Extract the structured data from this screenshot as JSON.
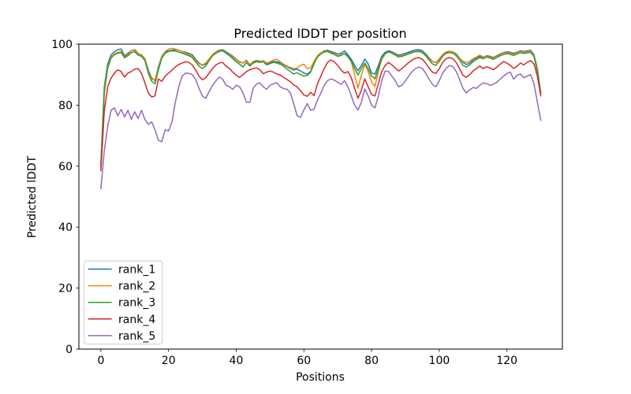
{
  "chart_data": {
    "type": "line",
    "title": "Predicted lDDT per position",
    "xlabel": "Positions",
    "ylabel": "Predicted lDDT",
    "xlim": [
      -6.7,
      136.7
    ],
    "ylim": [
      0,
      100
    ],
    "xticks": [
      0,
      20,
      40,
      60,
      80,
      100,
      120
    ],
    "yticks": [
      0,
      20,
      40,
      60,
      80,
      100
    ],
    "grid": false,
    "legend_position": "lower left",
    "x_start": 0,
    "x_step": 1,
    "n_points": 131,
    "series": [
      {
        "name": "rank_1",
        "color": "#1f77b4",
        "values": [
          61,
          86,
          93.5,
          96.5,
          97.5,
          98.2,
          98.4,
          96.2,
          97,
          97.9,
          98,
          96.8,
          96.5,
          95.2,
          91.5,
          88.9,
          88,
          92.5,
          96,
          97.5,
          97.8,
          98,
          98.2,
          98,
          97.6,
          97.3,
          97,
          96.5,
          95,
          93.8,
          93,
          93.5,
          95,
          96.5,
          97.5,
          98,
          98.2,
          97.5,
          96.8,
          96,
          95,
          94.2,
          93.8,
          94.7,
          93.2,
          94.3,
          94.6,
          94.4,
          94.5,
          93.6,
          94,
          94.3,
          94.2,
          93.9,
          93.2,
          92.6,
          92,
          91.5,
          91.8,
          91.2,
          90.5,
          90.2,
          91,
          94,
          96,
          97,
          97.8,
          98,
          97.6,
          97.2,
          96.8,
          97,
          97.8,
          96.5,
          95,
          93,
          91.3,
          93,
          95.1,
          93.5,
          90.5,
          90.2,
          93,
          96,
          97.3,
          97.8,
          97.5,
          96.9,
          96.4,
          96.6,
          97,
          97.4,
          97.8,
          98.1,
          98.2,
          97.8,
          96.8,
          95.5,
          94.3,
          93.9,
          95,
          96.5,
          97.4,
          97.6,
          97.5,
          96.8,
          95.5,
          94,
          93.3,
          93.8,
          94.8,
          95.5,
          96,
          95.6,
          96.2,
          96,
          95.6,
          96.2,
          96.8,
          97.2,
          97.5,
          97.3,
          97,
          97.4,
          97.8,
          97.6,
          97.8,
          98,
          96.5,
          92,
          84
        ]
      },
      {
        "name": "rank_2",
        "color": "#ff7f0e",
        "values": [
          60,
          85,
          92.5,
          95.8,
          96.8,
          97.3,
          97.6,
          95.8,
          96.5,
          97.8,
          98.3,
          97,
          96.3,
          95,
          91,
          88.5,
          88.3,
          92,
          95.8,
          97.6,
          98.4,
          98.6,
          98.4,
          98,
          97.5,
          97,
          96.6,
          96,
          94.6,
          93.5,
          93.2,
          93.8,
          95.2,
          96.6,
          97.4,
          97.8,
          98,
          97.2,
          96.5,
          95.6,
          94.8,
          94,
          93.9,
          94.5,
          93.4,
          94,
          94.4,
          94.2,
          94.6,
          93.8,
          94.2,
          94.8,
          95,
          94.2,
          93.4,
          92.8,
          92.4,
          92,
          92.2,
          93,
          93.4,
          92,
          92.2,
          94.4,
          96.2,
          97.2,
          97.6,
          97.8,
          97.2,
          96.8,
          96.2,
          96.5,
          96.8,
          95.8,
          94.2,
          90,
          85.5,
          90,
          93.3,
          91,
          87.5,
          86.2,
          91,
          95,
          96.8,
          97.4,
          97.2,
          96.6,
          96,
          96.2,
          96.6,
          97,
          97.4,
          97.6,
          97.8,
          97.4,
          96.4,
          95.2,
          94.2,
          94,
          95.2,
          96.6,
          97.5,
          97.7,
          97.4,
          96.6,
          95.4,
          94.4,
          94,
          94.4,
          95.2,
          95.8,
          96.4,
          95.8,
          96,
          95.7,
          95.4,
          96,
          96.6,
          97,
          97.2,
          97,
          96.7,
          97.2,
          97.6,
          97.3,
          97.5,
          97.7,
          96.2,
          91.5,
          83.8
        ]
      },
      {
        "name": "rank_3",
        "color": "#2ca02c",
        "values": [
          60,
          84,
          92,
          95.5,
          96.5,
          97,
          97.2,
          95.5,
          96.2,
          97.2,
          97.5,
          96.4,
          96,
          94.6,
          90.5,
          87.8,
          87,
          91.5,
          95.4,
          97,
          97.6,
          97.8,
          97.7,
          97.4,
          97,
          96.6,
          96.2,
          95.6,
          94.2,
          92.8,
          92,
          92.8,
          94.6,
          96.2,
          97,
          97.6,
          97.8,
          97,
          96.2,
          95.2,
          94.2,
          93.4,
          92.5,
          94,
          92.8,
          93.8,
          94.2,
          94,
          94.2,
          93.2,
          93.6,
          94,
          93.8,
          93.4,
          92.8,
          91.8,
          91,
          90.2,
          90.6,
          90,
          89.5,
          89.8,
          90.8,
          93.6,
          95.8,
          96.8,
          97.4,
          97.6,
          97,
          96.6,
          96,
          96.3,
          97,
          96,
          94.4,
          92,
          89.9,
          92,
          93.8,
          92,
          89.5,
          88.6,
          92,
          95.4,
          96.9,
          97.5,
          97,
          96.4,
          95.8,
          96,
          96.4,
          96.8,
          97.2,
          97.5,
          97.6,
          97.2,
          96.2,
          94.8,
          93.5,
          93,
          94.4,
          96,
          97,
          97.2,
          97,
          96.2,
          94.8,
          93,
          92.5,
          93.2,
          94.2,
          95,
          95.6,
          95.2,
          95.8,
          95.4,
          95,
          95.6,
          96.2,
          96.6,
          96.9,
          96.6,
          96.3,
          96.8,
          97.2,
          96.9,
          97.1,
          97.3,
          96,
          91,
          84.2
        ]
      },
      {
        "name": "rank_4",
        "color": "#d62728",
        "values": [
          58.5,
          78,
          86,
          88.8,
          90.5,
          91.6,
          91,
          89.2,
          90.5,
          91,
          91.8,
          92,
          90.4,
          87.3,
          84,
          82.7,
          83,
          88.6,
          87.8,
          89.5,
          90.5,
          91.5,
          92.5,
          93.3,
          93.8,
          94.2,
          94,
          93.2,
          91.5,
          89.5,
          88.3,
          89,
          90.5,
          92,
          93.2,
          93.8,
          94,
          92.8,
          92,
          90.8,
          89.8,
          89.1,
          90,
          91,
          91.6,
          92,
          92.2,
          91.6,
          90.3,
          90.8,
          91.2,
          90.8,
          90.2,
          89.9,
          89.1,
          88.4,
          87.7,
          86.6,
          86,
          84.7,
          83.3,
          82.9,
          84.2,
          83.1,
          87,
          89.5,
          92,
          94,
          94.8,
          94.2,
          93,
          91.5,
          90.5,
          91,
          89,
          85.5,
          82.2,
          85,
          88.6,
          86,
          83.5,
          83,
          87,
          91,
          93,
          94,
          93.2,
          92.2,
          91.2,
          92,
          93,
          94,
          94.8,
          95.4,
          95.6,
          95,
          93.8,
          92.2,
          90.8,
          90.4,
          92,
          94,
          95.2,
          95.6,
          95.2,
          94,
          92,
          89.8,
          89.1,
          90,
          91.2,
          92,
          92.8,
          92,
          92.6,
          92.2,
          91.6,
          92.4,
          93.4,
          94.3,
          93.8,
          93,
          92,
          92.8,
          93.8,
          93.2,
          94,
          94.6,
          93.5,
          89.5,
          83
        ]
      },
      {
        "name": "rank_5",
        "color": "#9467bd",
        "values": [
          52.5,
          65,
          73,
          78.3,
          79.1,
          76.5,
          78.6,
          76.1,
          78.3,
          75.3,
          77.8,
          75.6,
          78.3,
          75.3,
          73.7,
          74.5,
          71.9,
          68.5,
          68,
          71.9,
          71.5,
          74.5,
          81,
          86,
          89.5,
          90.5,
          90.4,
          90,
          88.5,
          85.5,
          83,
          82.2,
          84.5,
          86.5,
          88,
          89.2,
          88.5,
          86.5,
          86,
          85.2,
          86.5,
          86,
          84,
          81,
          80.9,
          85.5,
          86.9,
          87.3,
          86,
          85.2,
          86.5,
          87,
          87.3,
          86,
          85.4,
          85.2,
          84,
          80.5,
          76.5,
          76,
          78.5,
          80.5,
          78.3,
          78.7,
          81.7,
          84,
          86.5,
          88,
          88.6,
          88.2,
          87.5,
          86.8,
          88,
          86,
          83,
          80,
          78.4,
          81,
          85.3,
          83,
          80,
          79.1,
          83,
          88,
          91.2,
          91,
          89.5,
          88,
          86,
          86.5,
          88,
          89.5,
          91,
          92,
          92.5,
          92,
          90.5,
          88.5,
          86.8,
          86,
          88,
          90.5,
          92,
          93,
          92.6,
          91,
          88.5,
          85.5,
          84,
          85,
          85.8,
          85.5,
          86.5,
          87.3,
          87,
          86.5,
          86.8,
          87.5,
          88.5,
          89.5,
          90.4,
          90.8,
          88.5,
          89.8,
          90.2,
          89,
          89.5,
          90,
          87,
          81,
          75
        ]
      }
    ],
    "colors": {
      "background": "#ffffff",
      "spines": "#000000",
      "legend_edge": "#cccccc"
    }
  }
}
